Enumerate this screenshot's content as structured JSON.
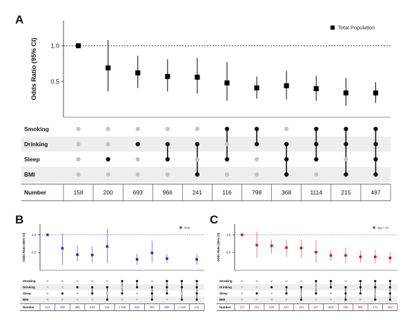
{
  "panels": {
    "A": {
      "label": "A"
    },
    "B": {
      "label": "B"
    },
    "C": {
      "label": "C"
    }
  },
  "chart_data": [
    {
      "panel": "A",
      "type": "scatter",
      "ylabel": "Odds Ratio  (95% CI)",
      "ylim": [
        0.0,
        1.35
      ],
      "yticks": [
        0.5,
        1.0
      ],
      "ytick_labels": [
        "0.5",
        "1.0"
      ],
      "reference_line": 1.0,
      "legend": "Total Population",
      "legend_position": "top-right",
      "marker_color": "#000000",
      "line_color": "#000000",
      "x": [
        1,
        2,
        3,
        4,
        5,
        6,
        7,
        8,
        9,
        10,
        11
      ],
      "or": [
        1.0,
        0.69,
        0.62,
        0.57,
        0.56,
        0.48,
        0.41,
        0.44,
        0.4,
        0.34,
        0.34
      ],
      "lower": [
        1.0,
        0.36,
        0.41,
        0.36,
        0.33,
        0.23,
        0.26,
        0.25,
        0.23,
        0.16,
        0.2
      ],
      "upper": [
        1.0,
        1.08,
        0.86,
        0.81,
        0.83,
        0.77,
        0.57,
        0.65,
        0.58,
        0.55,
        0.49
      ],
      "sets": [
        "Smoking",
        "Drinking",
        "Sleep",
        "BMI"
      ],
      "matrix": [
        [
          0,
          0,
          0,
          0
        ],
        [
          0,
          0,
          1,
          0
        ],
        [
          0,
          1,
          0,
          0
        ],
        [
          0,
          1,
          1,
          0
        ],
        [
          0,
          1,
          0,
          1
        ],
        [
          1,
          0,
          1,
          0
        ],
        [
          1,
          1,
          0,
          0
        ],
        [
          0,
          1,
          1,
          1
        ],
        [
          1,
          1,
          1,
          0
        ],
        [
          1,
          1,
          0,
          1
        ],
        [
          1,
          1,
          1,
          1
        ]
      ],
      "number_label": "Number",
      "numbers": [
        "158",
        "200",
        "693",
        "966",
        "241",
        "116",
        "798",
        "368",
        "1114",
        "215",
        "497"
      ]
    },
    {
      "panel": "B",
      "type": "scatter",
      "ylabel": "Odds Ratio  (95% CI)",
      "ylim": [
        0.0,
        1.3
      ],
      "yticks": [
        0.5,
        1.0
      ],
      "ytick_labels": [
        "0.5",
        "1.0"
      ],
      "reference_line": 1.0,
      "legend": "Male",
      "legend_position": "top-right",
      "marker_color": "#1f2bc8",
      "line_color": "#3a4fd6",
      "x": [
        1,
        2,
        3,
        4,
        5,
        6,
        7,
        8,
        9,
        10,
        11
      ],
      "or": [
        1.0,
        0.62,
        0.44,
        0.43,
        0.67,
        null,
        0.31,
        0.49,
        0.33,
        null,
        0.31
      ],
      "lower": [
        1.0,
        0.15,
        0.26,
        0.22,
        0.2,
        null,
        0.16,
        0.22,
        0.2,
        null,
        0.16
      ],
      "upper": [
        1.0,
        1.05,
        0.69,
        0.67,
        1.17,
        null,
        0.47,
        0.83,
        0.46,
        null,
        0.46
      ],
      "sets": [
        "Smoking",
        "Drinking",
        "Sleep",
        "BMI"
      ],
      "matrix": [
        [
          0,
          0,
          0,
          0
        ],
        [
          0,
          0,
          1,
          0
        ],
        [
          0,
          1,
          0,
          0
        ],
        [
          0,
          1,
          1,
          0
        ],
        [
          0,
          1,
          0,
          1
        ],
        [
          1,
          0,
          1,
          0
        ],
        [
          1,
          1,
          0,
          0
        ],
        [
          0,
          1,
          1,
          1
        ],
        [
          1,
          1,
          1,
          0
        ],
        [
          1,
          1,
          0,
          1
        ],
        [
          1,
          1,
          1,
          1
        ]
      ],
      "number_label": "Number",
      "numbers": [
        "113",
        "159",
        "368",
        "534",
        "131",
        "< 100",
        "564",
        "187",
        "840",
        "< 100",
        "171"
      ]
    },
    {
      "panel": "C",
      "type": "scatter",
      "ylabel": "Odds Ratio  (95% CI)",
      "ylim": [
        0.0,
        1.3
      ],
      "yticks": [
        0.5,
        1.0
      ],
      "ytick_labels": [
        "0.5",
        "1.0"
      ],
      "reference_line": 1.0,
      "legend": "Age < 65",
      "legend_position": "top-right",
      "marker_color": "#d4141a",
      "line_color": "#d44a48",
      "x": [
        1,
        2,
        3,
        4,
        5,
        6,
        7,
        8,
        9,
        10,
        11
      ],
      "or": [
        1.0,
        0.71,
        0.69,
        0.64,
        0.63,
        0.51,
        0.42,
        0.42,
        0.38,
        0.38,
        0.35
      ],
      "lower": [
        1.0,
        0.35,
        0.47,
        0.38,
        0.34,
        0.21,
        0.28,
        0.2,
        0.22,
        0.2,
        0.2
      ],
      "upper": [
        1.0,
        1.09,
        0.87,
        0.85,
        0.87,
        0.85,
        0.57,
        0.64,
        0.55,
        0.58,
        0.51
      ],
      "sets": [
        "Smoking",
        "Drinking",
        "Sleep",
        "BMI"
      ],
      "matrix": [
        [
          0,
          0,
          0,
          0
        ],
        [
          0,
          0,
          1,
          0
        ],
        [
          0,
          1,
          0,
          0
        ],
        [
          0,
          1,
          1,
          0
        ],
        [
          0,
          1,
          0,
          1
        ],
        [
          1,
          0,
          1,
          0
        ],
        [
          1,
          1,
          0,
          0
        ],
        [
          0,
          1,
          1,
          1
        ],
        [
          1,
          1,
          1,
          0
        ],
        [
          1,
          1,
          0,
          1
        ],
        [
          1,
          1,
          1,
          1
        ]
      ],
      "number_label": "Number",
      "numbers": [
        "137",
        "181",
        "549",
        "644",
        "184",
        "107",
        "669",
        "259",
        "885",
        "171",
        "393"
      ]
    }
  ]
}
